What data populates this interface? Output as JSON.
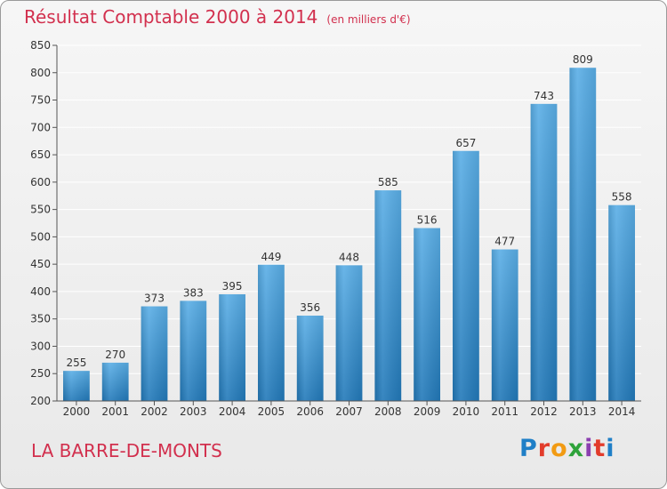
{
  "title": "Résultat Comptable 2000 à 2014",
  "unit_note": "(en milliers d'€)",
  "place": "LA BARRE-DE-MONTS",
  "logo_text": "Proxiti",
  "colors": {
    "title": "#d2304e",
    "bar_top": "#5aaee6",
    "bar_bottom": "#2279b9",
    "grid": "#ffffff"
  },
  "chart_data": {
    "type": "bar",
    "title": "Résultat Comptable 2000 à 2014",
    "subtitle": "(en milliers d'€)",
    "xlabel": "",
    "ylabel": "",
    "categories": [
      "2000",
      "2001",
      "2002",
      "2003",
      "2004",
      "2005",
      "2006",
      "2007",
      "2008",
      "2009",
      "2010",
      "2011",
      "2012",
      "2013",
      "2014"
    ],
    "values": [
      255,
      270,
      373,
      383,
      395,
      449,
      356,
      448,
      585,
      516,
      657,
      477,
      743,
      809,
      558
    ],
    "ylim": [
      200,
      850
    ],
    "yticks": [
      200,
      250,
      300,
      350,
      400,
      450,
      500,
      550,
      600,
      650,
      700,
      750,
      800,
      850
    ],
    "grid": true,
    "legend": "none"
  }
}
